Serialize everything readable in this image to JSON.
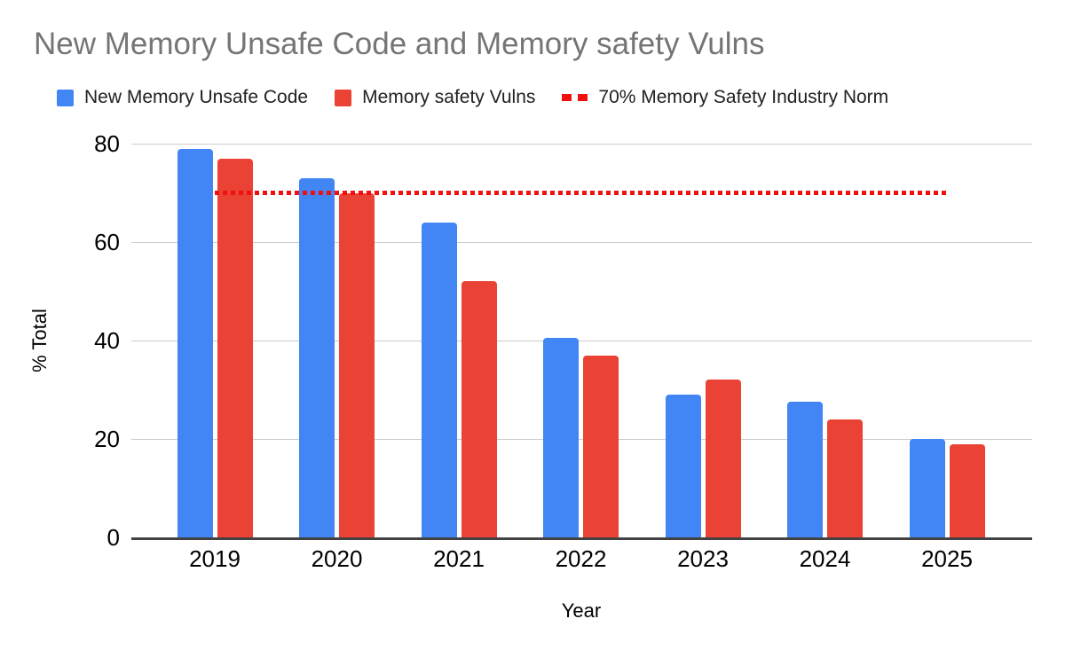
{
  "chart": {
    "title": "New Memory Unsafe Code and Memory safety Vulns",
    "legend": [
      {
        "label": "New Memory Unsafe Code",
        "color": "#4285f4",
        "marker": "square"
      },
      {
        "label": "Memory safety Vulns",
        "color": "#ea4335",
        "marker": "square"
      },
      {
        "label": "70% Memory Safety Industry Norm",
        "color": "#f01010",
        "marker": "dashed-line"
      }
    ]
  },
  "chart_data": {
    "type": "bar",
    "title": "New Memory Unsafe Code and Memory safety Vulns",
    "categories": [
      "2019",
      "2020",
      "2021",
      "2022",
      "2023",
      "2024",
      "2025"
    ],
    "series": [
      {
        "name": "New Memory Unsafe Code",
        "type": "bar",
        "color": "#4285f4",
        "values": [
          79,
          73,
          64,
          40.5,
          29,
          27.5,
          20
        ]
      },
      {
        "name": "Memory safety Vulns",
        "type": "bar",
        "color": "#ea4335",
        "values": [
          77,
          70,
          52,
          37,
          32,
          24,
          19
        ]
      },
      {
        "name": "70% Memory Safety Industry Norm",
        "type": "dashed-line",
        "color": "#f01010",
        "value": 70
      }
    ],
    "xlabel": "Year",
    "ylabel": "% Total",
    "ylim": [
      0,
      80
    ],
    "yticks": [
      0,
      20,
      40,
      60,
      80
    ],
    "grid": true,
    "legend_position": "top"
  }
}
